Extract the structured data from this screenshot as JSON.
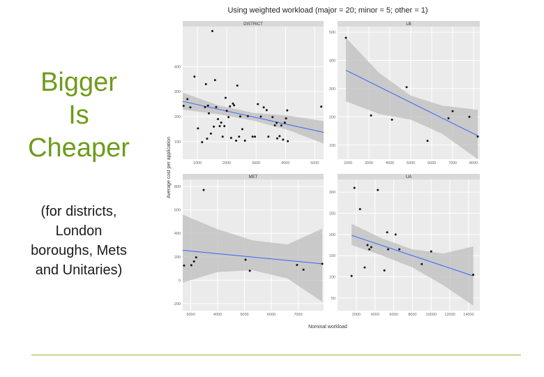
{
  "slide": {
    "title": "Bigger\nIs\nCheaper",
    "subtitle": "(for districts,\nLondon\nboroughs, Mets\nand Unitaries)"
  },
  "colors": {
    "title": "#6e9b1a",
    "rule": "#8fb33a",
    "panel_bg": "#ebebeb",
    "strip_bg": "#d9d9d9",
    "gridline": "#ffffff",
    "ribbon": "#bdbdbd",
    "fit_line": "#3366ff",
    "point": "#111111"
  },
  "chart_data": {
    "type": "scatter",
    "title": "Using weighted workload (major = 20; minor = 5; other = 1)",
    "xlabel": "Nominal workload",
    "ylabel": "Average cost per application",
    "smoother": "linear fit with confidence band",
    "facets": [
      {
        "name": "DISTRICT",
        "xlim": [
          500,
          5300
        ],
        "ylim": [
          30,
          560
        ],
        "xticks": [
          1000,
          2000,
          3000,
          4000,
          5000
        ],
        "yticks": [
          100,
          200,
          300,
          400
        ],
        "x": [
          530,
          660,
          760,
          900,
          1020,
          1160,
          1260,
          1290,
          1330,
          1360,
          1390,
          1460,
          1510,
          1560,
          1600,
          1640,
          1700,
          1760,
          1810,
          1860,
          1920,
          1960,
          2000,
          2060,
          2110,
          2150,
          2210,
          2250,
          2320,
          2360,
          2420,
          2460,
          2530,
          2620,
          2720,
          2880,
          2960,
          3060,
          3160,
          3260,
          3360,
          3420,
          3560,
          3640,
          3700,
          3720,
          3800,
          3860,
          3920,
          3980,
          4020,
          4060,
          4080,
          5220
        ],
        "y": [
          243,
          270,
          237,
          360,
          153,
          98,
          238,
          330,
          112,
          244,
          213,
          132,
          542,
          160,
          346,
          238,
          190,
          162,
          176,
          120,
          162,
          275,
          223,
          198,
          241,
          115,
          252,
          245,
          104,
          324,
          120,
          201,
          150,
          104,
          202,
          120,
          120,
          250,
          200,
          237,
          226,
          120,
          198,
          165,
          175,
          113,
          122,
          165,
          108,
          176,
          193,
          225,
          102,
          240
        ],
        "fit": {
          "x": [
            500,
            5300
          ],
          "y": [
            261,
            137
          ]
        },
        "band_x": [
          500,
          1700,
          2900,
          4100,
          5300
        ],
        "band_lo": [
          228,
          210,
          184,
          146,
          92
        ],
        "band_hi": [
          296,
          246,
          215,
          204,
          182
        ]
      },
      {
        "name": "LB",
        "xlim": [
          1500,
          8300
        ],
        "ylim": [
          50,
          520
        ],
        "xticks": [
          2000,
          3000,
          4000,
          5000,
          6000,
          7000,
          8000
        ],
        "yticks": [
          100,
          200,
          300,
          400,
          500
        ],
        "x": [
          1900,
          3100,
          4100,
          4800,
          5800,
          6800,
          7000,
          7800,
          8200
        ],
        "y": [
          480,
          205,
          190,
          305,
          115,
          195,
          220,
          200,
          130
        ],
        "fit": {
          "x": [
            1900,
            8200
          ],
          "y": [
            365,
            133
          ]
        },
        "band_x": [
          1900,
          3500,
          5000,
          6500,
          8200
        ],
        "band_lo": [
          255,
          210,
          190,
          140,
          50
        ],
        "band_hi": [
          480,
          355,
          275,
          240,
          225
        ]
      },
      {
        "name": "MET",
        "xlim": [
          2700,
          7950
        ],
        "ylim": [
          -260,
          860
        ],
        "xticks": [
          3000,
          4000,
          5000,
          6000,
          7000
        ],
        "yticks": [
          -200,
          0,
          200,
          400,
          600,
          800
        ],
        "x": [
          2750,
          3020,
          3120,
          3200,
          3480,
          5040,
          5200,
          6960,
          7200,
          7900
        ],
        "y": [
          125,
          128,
          160,
          195,
          770,
          175,
          80,
          130,
          90,
          140
        ],
        "fit": {
          "x": [
            2700,
            7900
          ],
          "y": [
            255,
            140
          ]
        },
        "band_x": [
          2700,
          4000,
          5300,
          6600,
          7900
        ],
        "band_lo": [
          -20,
          70,
          85,
          15,
          -185
        ],
        "band_hi": [
          560,
          435,
          340,
          305,
          440
        ]
      },
      {
        "name": "UA",
        "xlim": [
          0,
          15200
        ],
        "ylim": [
          20,
          330
        ],
        "xticks": [
          2000,
          4000,
          6000,
          8000,
          10000,
          12000,
          14000
        ],
        "yticks": [
          50,
          100,
          150,
          200,
          250,
          300
        ],
        "x": [
          1500,
          1800,
          2400,
          2900,
          3200,
          3400,
          3600,
          4300,
          5000,
          5300,
          5400,
          6200,
          6600,
          9000,
          10000,
          14500
        ],
        "y": [
          102,
          310,
          260,
          122,
          175,
          165,
          170,
          305,
          115,
          205,
          165,
          200,
          165,
          130,
          160,
          105
        ],
        "fit": {
          "x": [
            1500,
            14500
          ],
          "y": [
            198,
            102
          ]
        },
        "band_x": [
          1500,
          4800,
          8000,
          11300,
          14500
        ],
        "band_lo": [
          175,
          150,
          122,
          80,
          32
        ],
        "band_hi": [
          225,
          190,
          165,
          155,
          172
        ]
      }
    ]
  }
}
